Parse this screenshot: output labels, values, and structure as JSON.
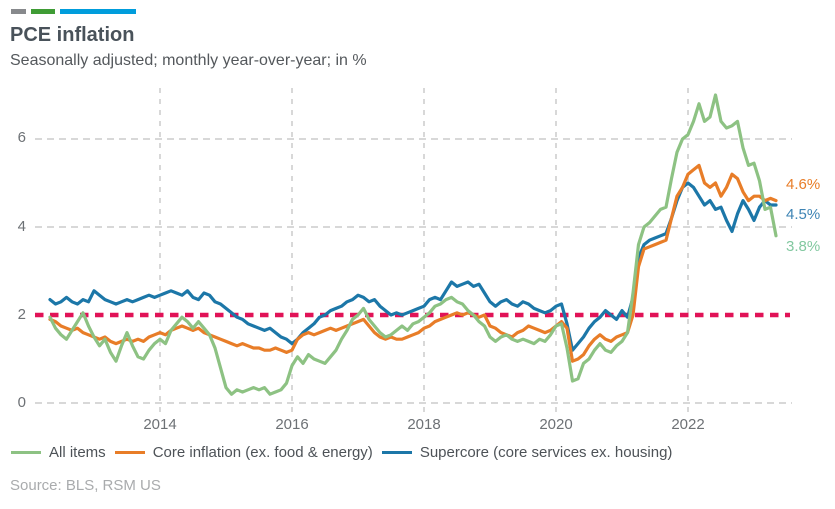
{
  "brand_bars": {
    "colors": [
      "#87898c",
      "#3f9c35",
      "#009ddc"
    ]
  },
  "header": {
    "title": "PCE inflation",
    "subtitle": "Seasonally adjusted; monthly year-over-year; in %"
  },
  "source": "Source: BLS, RSM US",
  "chart_data": {
    "type": "line",
    "title": "PCE inflation",
    "subtitle": "Seasonally adjusted; monthly year-over-year; in %",
    "x_range": "monthly from 2012-05 to 2023-05",
    "xticks": [
      2014,
      2016,
      2018,
      2020,
      2022
    ],
    "yticks": [
      0,
      2,
      4,
      6
    ],
    "ylim": [
      0,
      7.2
    ],
    "grid": "dashed gray, horizontal and vertical",
    "legend_position": "bottom",
    "reference_line": {
      "value": 2,
      "color": "#e11357",
      "style": "dotted"
    },
    "series": [
      {
        "name": "All items",
        "color": "#8dc283",
        "label_color": "#82c8a0",
        "end_label": "3.8%",
        "values": [
          1.95,
          1.7,
          1.55,
          1.45,
          1.65,
          1.85,
          2.05,
          1.75,
          1.5,
          1.3,
          1.45,
          1.15,
          0.95,
          1.3,
          1.6,
          1.3,
          1.05,
          1.0,
          1.2,
          1.35,
          1.45,
          1.35,
          1.65,
          1.8,
          1.95,
          1.85,
          1.7,
          1.85,
          1.7,
          1.55,
          1.25,
          0.8,
          0.35,
          0.2,
          0.3,
          0.25,
          0.3,
          0.35,
          0.3,
          0.35,
          0.2,
          0.25,
          0.3,
          0.45,
          0.85,
          1.05,
          0.9,
          1.1,
          1.0,
          0.95,
          0.9,
          1.05,
          1.2,
          1.45,
          1.65,
          1.9,
          2.0,
          2.15,
          1.9,
          1.75,
          1.6,
          1.5,
          1.55,
          1.65,
          1.75,
          1.65,
          1.8,
          1.85,
          1.95,
          2.05,
          2.2,
          2.25,
          2.35,
          2.4,
          2.3,
          2.25,
          2.1,
          2.0,
          1.85,
          1.75,
          1.5,
          1.4,
          1.5,
          1.55,
          1.45,
          1.4,
          1.45,
          1.4,
          1.35,
          1.45,
          1.4,
          1.55,
          1.75,
          1.8,
          1.25,
          0.5,
          0.55,
          0.9,
          1.0,
          1.2,
          1.35,
          1.2,
          1.15,
          1.3,
          1.4,
          1.6,
          2.5,
          3.6,
          4.0,
          4.1,
          4.25,
          4.4,
          4.45,
          5.1,
          5.7,
          6.0,
          6.1,
          6.4,
          6.8,
          6.4,
          6.5,
          7.0,
          6.4,
          6.25,
          6.3,
          6.4,
          5.8,
          5.4,
          5.45,
          5.05,
          4.4,
          4.45,
          3.8
        ]
      },
      {
        "name": "Core inflation (ex. food & energy)",
        "color": "#e87d28",
        "label_color": "#e87d28",
        "end_label": "4.6%",
        "values": [
          1.9,
          1.85,
          1.75,
          1.7,
          1.65,
          1.7,
          1.6,
          1.55,
          1.5,
          1.45,
          1.5,
          1.4,
          1.35,
          1.4,
          1.45,
          1.4,
          1.45,
          1.4,
          1.5,
          1.55,
          1.6,
          1.55,
          1.65,
          1.7,
          1.75,
          1.7,
          1.65,
          1.7,
          1.6,
          1.55,
          1.5,
          1.45,
          1.4,
          1.35,
          1.3,
          1.35,
          1.3,
          1.25,
          1.25,
          1.2,
          1.2,
          1.25,
          1.2,
          1.15,
          1.2,
          1.45,
          1.55,
          1.6,
          1.55,
          1.6,
          1.65,
          1.7,
          1.65,
          1.7,
          1.75,
          1.8,
          1.85,
          1.9,
          1.75,
          1.6,
          1.5,
          1.45,
          1.5,
          1.45,
          1.45,
          1.5,
          1.55,
          1.6,
          1.7,
          1.75,
          1.85,
          1.9,
          1.95,
          2.0,
          2.05,
          2.0,
          2.05,
          2.0,
          1.95,
          2.0,
          1.75,
          1.7,
          1.6,
          1.55,
          1.5,
          1.6,
          1.65,
          1.75,
          1.7,
          1.65,
          1.6,
          1.65,
          1.75,
          1.85,
          1.7,
          0.95,
          1.0,
          1.1,
          1.3,
          1.45,
          1.55,
          1.45,
          1.4,
          1.5,
          1.55,
          1.6,
          2.0,
          3.1,
          3.5,
          3.55,
          3.6,
          3.65,
          3.7,
          4.2,
          4.7,
          4.9,
          5.2,
          5.3,
          5.4,
          5.0,
          4.9,
          5.0,
          4.7,
          4.9,
          5.2,
          5.1,
          4.8,
          4.6,
          4.7,
          4.7,
          4.6,
          4.65,
          4.6
        ]
      },
      {
        "name": "Supercore (core services ex. housing)",
        "color": "#1c77a8",
        "label_color": "#3e84b4",
        "end_label": "4.5%",
        "values": [
          2.35,
          2.25,
          2.3,
          2.4,
          2.3,
          2.25,
          2.35,
          2.3,
          2.55,
          2.45,
          2.35,
          2.3,
          2.25,
          2.3,
          2.35,
          2.3,
          2.35,
          2.4,
          2.45,
          2.4,
          2.45,
          2.5,
          2.55,
          2.5,
          2.45,
          2.55,
          2.4,
          2.35,
          2.5,
          2.45,
          2.3,
          2.25,
          2.15,
          2.05,
          1.95,
          1.9,
          1.8,
          1.75,
          1.7,
          1.65,
          1.7,
          1.6,
          1.5,
          1.45,
          1.35,
          1.45,
          1.6,
          1.7,
          1.8,
          1.95,
          2.0,
          2.1,
          2.15,
          2.2,
          2.3,
          2.35,
          2.45,
          2.4,
          2.3,
          2.35,
          2.2,
          2.1,
          2.0,
          2.05,
          2.0,
          2.05,
          2.1,
          2.15,
          2.2,
          2.35,
          2.4,
          2.35,
          2.55,
          2.75,
          2.65,
          2.7,
          2.75,
          2.65,
          2.7,
          2.5,
          2.3,
          2.2,
          2.3,
          2.35,
          2.25,
          2.2,
          2.3,
          2.25,
          2.15,
          2.1,
          2.05,
          2.1,
          2.2,
          2.25,
          1.8,
          1.2,
          1.35,
          1.5,
          1.7,
          1.85,
          1.95,
          2.1,
          2.0,
          1.9,
          2.1,
          1.95,
          2.4,
          3.3,
          3.6,
          3.7,
          3.75,
          3.8,
          3.85,
          4.2,
          4.6,
          4.9,
          5.0,
          4.9,
          4.7,
          4.5,
          4.6,
          4.4,
          4.45,
          4.15,
          3.9,
          4.3,
          4.6,
          4.4,
          4.15,
          4.45,
          4.6,
          4.5,
          4.5
        ]
      }
    ]
  }
}
